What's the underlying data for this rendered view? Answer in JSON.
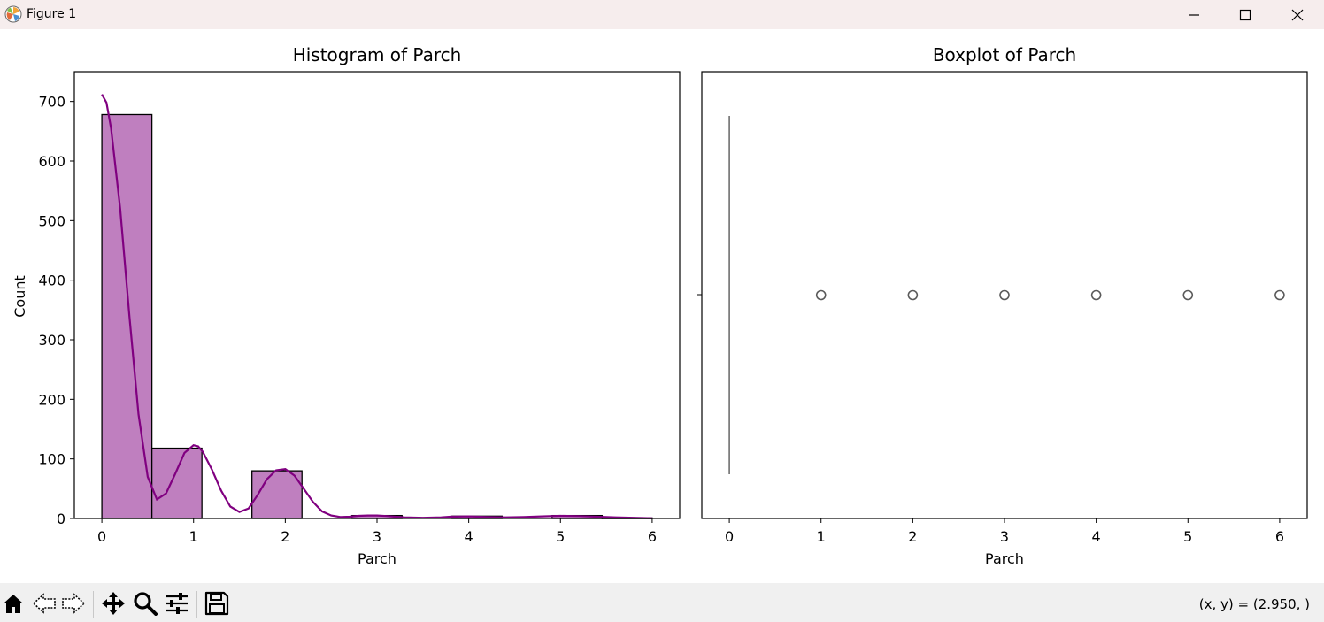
{
  "window": {
    "title": "Figure 1",
    "icon": "matplotlib-icon",
    "controls": [
      "minimize-icon",
      "maximize-icon",
      "close-icon"
    ]
  },
  "toolbar": {
    "tools": [
      "home-icon",
      "back-arrow-icon",
      "forward-arrow-icon",
      "pan-icon",
      "zoom-icon",
      "configure-subplots-icon",
      "save-icon"
    ],
    "coords": "(x, y) = (2.950, )"
  },
  "chart_data": [
    {
      "type": "bar",
      "title": "Histogram of Parch",
      "xlabel": "Parch",
      "ylabel": "Count",
      "xlim": [
        -0.3,
        6.3
      ],
      "ylim": [
        0,
        750
      ],
      "xticks": [
        0,
        1,
        2,
        3,
        4,
        5,
        6
      ],
      "yticks": [
        0,
        100,
        200,
        300,
        400,
        500,
        600,
        700
      ],
      "bin_edges": [
        0,
        0.5455,
        1.0909,
        1.6364,
        2.1818,
        2.7273,
        3.2727,
        3.8182,
        4.3636,
        4.9091,
        5.4545,
        6
      ],
      "values": [
        678,
        118,
        0,
        80,
        0,
        5,
        0,
        4,
        0,
        5,
        1
      ],
      "bar_color": "#bf7fbf",
      "kde": {
        "color": "#800080",
        "x": [
          0,
          0.05,
          0.1,
          0.2,
          0.3,
          0.4,
          0.5,
          0.6,
          0.7,
          0.8,
          0.9,
          1.0,
          1.05,
          1.1,
          1.2,
          1.3,
          1.4,
          1.5,
          1.6,
          1.7,
          1.8,
          1.9,
          2.0,
          2.1,
          2.2,
          2.3,
          2.4,
          2.5,
          2.6,
          2.7,
          2.8,
          2.9,
          3.0,
          3.1,
          3.2,
          3.3,
          3.5,
          3.7,
          3.8,
          4.0,
          4.2,
          4.4,
          4.6,
          4.8,
          5.0,
          5.2,
          5.4,
          5.6,
          5.8,
          6.0
        ],
        "y": [
          712,
          698,
          655,
          520,
          340,
          175,
          70,
          32,
          42,
          75,
          110,
          123,
          121,
          112,
          82,
          47,
          20,
          11,
          17,
          40,
          66,
          81,
          83,
          72,
          50,
          28,
          12,
          5,
          2.5,
          3,
          4.5,
          5,
          5,
          4.2,
          3,
          2,
          1.2,
          2,
          3,
          3.5,
          2.5,
          2,
          2.5,
          3.5,
          4.5,
          4,
          3,
          2,
          1.2,
          0.5
        ]
      }
    },
    {
      "type": "boxplot",
      "title": "Boxplot of Parch",
      "xlabel": "Parch",
      "xlim": [
        -0.3,
        6.3
      ],
      "xticks": [
        0,
        1,
        2,
        3,
        4,
        5,
        6
      ],
      "box": {
        "q1": 0,
        "median": 0,
        "q3": 0,
        "whisker_low": 0,
        "whisker_high": 0
      },
      "outliers": [
        1,
        2,
        3,
        4,
        5,
        6
      ],
      "box_color": "#5a5a5a"
    }
  ]
}
